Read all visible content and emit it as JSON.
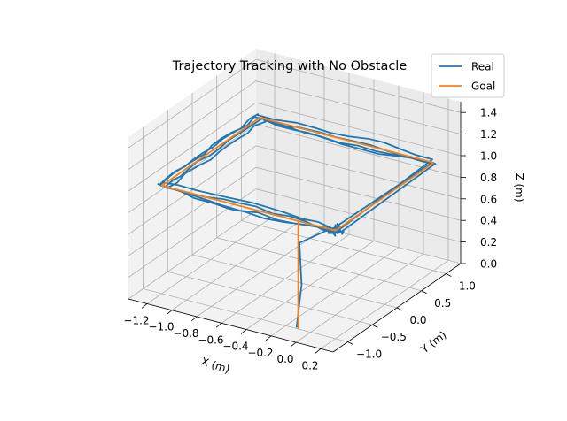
{
  "chart_data": {
    "type": "line3d",
    "title": "Trajectory Tracking with No Obstacle",
    "xlabel": "X (m)",
    "ylabel": "Y (m)",
    "zlabel": "Z (m)",
    "xlim": [
      -1.35,
      0.3
    ],
    "ylim": [
      -1.3,
      1.3
    ],
    "zlim": [
      0.0,
      1.5
    ],
    "x_ticks": [
      "−1.2",
      "−1.0",
      "−0.8",
      "−0.6",
      "−0.4",
      "−0.2",
      "0.0",
      "0.2"
    ],
    "x_tick_values": [
      -1.2,
      -1.0,
      -0.8,
      -0.6,
      -0.4,
      -0.2,
      0.0,
      0.2
    ],
    "y_ticks": [
      "−1.0",
      "−0.5",
      "0.0",
      "0.5",
      "1.0"
    ],
    "y_tick_values": [
      -1.0,
      -0.5,
      0.0,
      0.5,
      1.0
    ],
    "z_ticks": [
      "0.0",
      "0.2",
      "0.4",
      "0.6",
      "0.8",
      "1.0",
      "1.2",
      "1.4"
    ],
    "z_tick_values": [
      0.0,
      0.2,
      0.4,
      0.6,
      0.8,
      1.0,
      1.2,
      1.4
    ],
    "grid": true,
    "legend_position": "top-right",
    "series": [
      {
        "name": "Real",
        "color": "#1f77b4",
        "description_points": {
          "takeoff": [
            [
              -0.1,
              -1.0,
              0.0
            ],
            [
              -0.08,
              -0.95,
              0.4
            ],
            [
              -0.1,
              -1.0,
              0.8
            ]
          ],
          "loop_corners": [
            [
              -1.2,
              -1.0,
              1.0
            ],
            [
              -1.2,
              1.0,
              1.0
            ],
            [
              0.2,
              1.0,
              1.0
            ],
            [
              0.2,
              -1.0,
              1.0
            ]
          ],
          "laps": 4
        }
      },
      {
        "name": "Goal",
        "color": "#ff7f0e",
        "points": [
          [
            -0.1,
            -1.0,
            0.0
          ],
          [
            -0.1,
            -1.0,
            1.0
          ],
          [
            0.2,
            -1.0,
            1.0
          ],
          [
            0.2,
            1.0,
            1.0
          ],
          [
            -1.2,
            1.0,
            1.0
          ],
          [
            -1.2,
            -1.0,
            1.0
          ],
          [
            -0.1,
            -1.0,
            1.0
          ]
        ]
      }
    ]
  }
}
